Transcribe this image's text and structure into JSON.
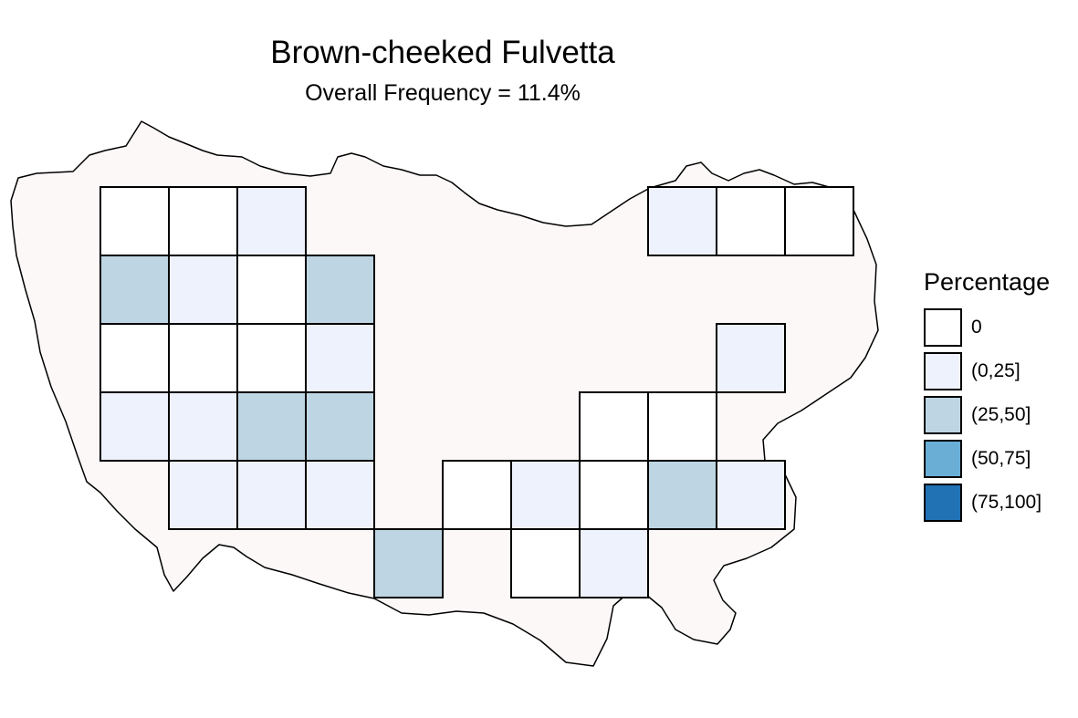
{
  "title": "Brown-cheeked Fulvetta",
  "subtitle": "Overall Frequency = 11.4%",
  "region_fill": "#fdf8f8",
  "legend": {
    "title": "Percentage",
    "items": [
      {
        "label": "0",
        "color": "#ffffff"
      },
      {
        "label": "(0,25]",
        "color": "#eef2fc"
      },
      {
        "label": "(25,50]",
        "color": "#bed6e3"
      },
      {
        "label": "(50,75]",
        "color": "#6aaed6"
      },
      {
        "label": "(75,100]",
        "color": "#2171b5"
      }
    ]
  },
  "chart_data": {
    "type": "heatmap",
    "title": "Brown-cheeked Fulvetta",
    "subtitle": "Overall Frequency = 11.4%",
    "legend_title": "Percentage",
    "classes": [
      "0",
      "(0,25]",
      "(25,50]",
      "(50,75]",
      "(75,100]"
    ],
    "grid_note": "row 0 = top row, col 0 = leftmost column; class index into classes",
    "cells": [
      {
        "row": 0,
        "col": 0,
        "class": 0
      },
      {
        "row": 0,
        "col": 1,
        "class": 0
      },
      {
        "row": 0,
        "col": 2,
        "class": 1
      },
      {
        "row": 0,
        "col": 8,
        "class": 1
      },
      {
        "row": 0,
        "col": 9,
        "class": 0
      },
      {
        "row": 0,
        "col": 10,
        "class": 0
      },
      {
        "row": 1,
        "col": 0,
        "class": 2
      },
      {
        "row": 1,
        "col": 1,
        "class": 1
      },
      {
        "row": 1,
        "col": 2,
        "class": 0
      },
      {
        "row": 1,
        "col": 3,
        "class": 2
      },
      {
        "row": 2,
        "col": 0,
        "class": 0
      },
      {
        "row": 2,
        "col": 1,
        "class": 0
      },
      {
        "row": 2,
        "col": 2,
        "class": 0
      },
      {
        "row": 2,
        "col": 3,
        "class": 1
      },
      {
        "row": 2,
        "col": 9,
        "class": 1
      },
      {
        "row": 3,
        "col": 0,
        "class": 1
      },
      {
        "row": 3,
        "col": 1,
        "class": 1
      },
      {
        "row": 3,
        "col": 2,
        "class": 2
      },
      {
        "row": 3,
        "col": 3,
        "class": 2
      },
      {
        "row": 3,
        "col": 7,
        "class": 0
      },
      {
        "row": 3,
        "col": 8,
        "class": 0
      },
      {
        "row": 4,
        "col": 1,
        "class": 1
      },
      {
        "row": 4,
        "col": 2,
        "class": 1
      },
      {
        "row": 4,
        "col": 3,
        "class": 1
      },
      {
        "row": 4,
        "col": 5,
        "class": 0
      },
      {
        "row": 4,
        "col": 6,
        "class": 1
      },
      {
        "row": 4,
        "col": 7,
        "class": 0
      },
      {
        "row": 4,
        "col": 8,
        "class": 2
      },
      {
        "row": 4,
        "col": 9,
        "class": 1
      },
      {
        "row": 5,
        "col": 4,
        "class": 2
      },
      {
        "row": 5,
        "col": 6,
        "class": 0
      },
      {
        "row": 5,
        "col": 7,
        "class": 1
      }
    ]
  }
}
